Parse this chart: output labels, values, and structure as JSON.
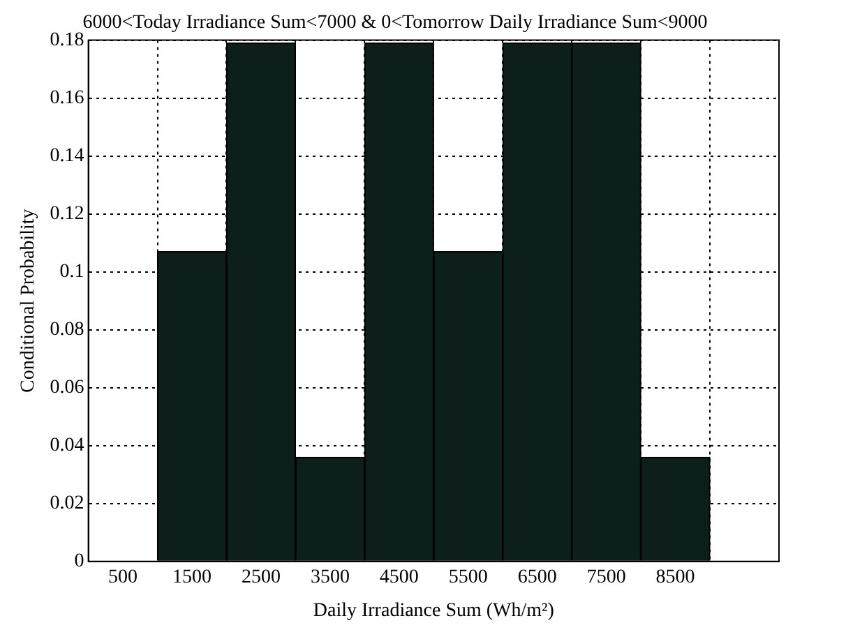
{
  "chart_data": {
    "type": "histogram",
    "title": "6000<Today Irradiance Sum<7000 & 0<Tomorrow Daily Irradiance Sum<9000",
    "xlabel": "Daily Irradiance Sum (Wh/m²)",
    "ylabel": "Conditional Probability",
    "bins": [
      1000,
      2000,
      3000,
      4000,
      5000,
      6000,
      7000,
      8000,
      9000
    ],
    "values": [
      0.107,
      0.179,
      0.036,
      0.179,
      0.107,
      0.179,
      0.179,
      0.036
    ],
    "color": "#0d1f1a",
    "xlim": [
      0,
      10000
    ],
    "xticks": [
      500,
      1500,
      2500,
      3500,
      4500,
      5500,
      6500,
      7500,
      8500
    ],
    "ylim": [
      0,
      0.18
    ],
    "yticks": [
      0,
      0.02,
      0.04,
      0.06,
      0.08,
      0.1,
      0.12,
      0.14,
      0.16,
      0.18
    ],
    "grid": true
  }
}
